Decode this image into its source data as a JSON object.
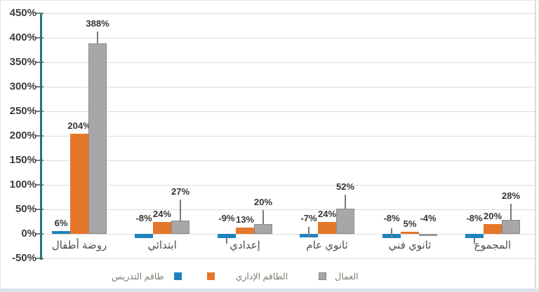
{
  "chart_data": {
    "type": "bar",
    "title": "",
    "categories": [
      "روضة أطفال",
      "ابتدائي",
      "إعدادي",
      "ثانوي عام",
      "ثانوي فني",
      "المجموع"
    ],
    "series": [
      {
        "name": "طاقم التدريس",
        "color": "#1e82c0",
        "values": [
          6,
          -8,
          -9,
          -7,
          -8,
          -8
        ],
        "labels": [
          "6%",
          "-8%",
          "-9%",
          "-7%",
          "-8%",
          "-8%"
        ],
        "error_to": [
          null,
          null,
          -20,
          15,
          12,
          -20
        ]
      },
      {
        "name": "الطاقم الإداري",
        "color": "#e5772a",
        "values": [
          204,
          24,
          13,
          24,
          5,
          20
        ],
        "labels": [
          "204%",
          "24%",
          "13%",
          "24%",
          "5%",
          "20%"
        ],
        "error_to": [
          null,
          null,
          null,
          null,
          null,
          null
        ]
      },
      {
        "name": "العمال",
        "color": "#a7a7a7",
        "border_color": "#8c8c8c",
        "values": [
          388,
          27,
          20,
          52,
          -4,
          28
        ],
        "labels": [
          "388%",
          "27%",
          "20%",
          "52%",
          "-4%",
          "28%"
        ],
        "error_to": [
          413,
          70,
          48,
          80,
          null,
          62
        ]
      }
    ],
    "y_ticks": [
      {
        "label": "450%",
        "value": 450
      },
      {
        "label": "400%",
        "value": 400
      },
      {
        "label": "350%",
        "value": 350
      },
      {
        "label": "300%",
        "value": 300
      },
      {
        "label": "250%",
        "value": 250
      },
      {
        "label": "200%",
        "value": 200
      },
      {
        "label": "150%",
        "value": 150
      },
      {
        "label": "100%",
        "value": 100
      },
      {
        "label": "50%",
        "value": 50
      },
      {
        "label": "0%",
        "value": 0
      },
      {
        "label": "-50%",
        "value": -50
      }
    ],
    "ylim": [
      -50,
      450
    ],
    "xlabel": "",
    "ylabel": "",
    "grid": true,
    "legend_position": "bottom",
    "axis_color": "#2e6f7c",
    "grid_color": "#dcdcdc"
  },
  "legend": {
    "items": [
      {
        "label": "طاقم التدريس",
        "color": "#1e82c0",
        "marker_side": "right"
      },
      {
        "label": "الطاقم الإداري",
        "color": "#e5772a",
        "marker_side": "left"
      },
      {
        "label": "العمال",
        "color": "#a7a7a7",
        "marker_side": "left"
      }
    ]
  }
}
